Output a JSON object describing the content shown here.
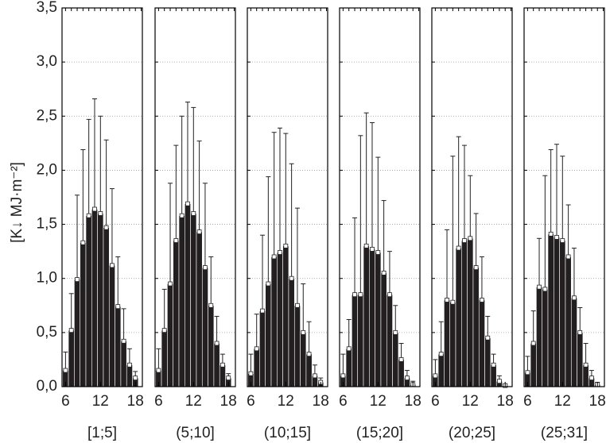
{
  "chart_data": [
    {
      "type": "bar",
      "y_label": "[K↓ MJ·m⁻²]",
      "x_label": "[1;5]",
      "x": [
        6,
        7,
        8,
        9,
        10,
        11,
        12,
        13,
        14,
        15,
        16,
        17,
        18
      ],
      "values": [
        0.15,
        0.52,
        0.99,
        1.33,
        1.58,
        1.64,
        1.6,
        1.47,
        1.12,
        0.74,
        0.42,
        0.2,
        0.08
      ],
      "errors": [
        0.17,
        0.34,
        0.78,
        0.86,
        0.89,
        1.02,
        0.9,
        0.81,
        0.71,
        0.46,
        0.3,
        0.15,
        0.06
      ],
      "color": "#231f20",
      "xlim": [
        5.4,
        19.2
      ],
      "xticks": [
        6,
        12,
        18
      ],
      "ylim": [
        0,
        3.5
      ],
      "yticks": [
        {
          "value": 0,
          "label": "0,0"
        },
        {
          "value": 0.5,
          "label": "0,5"
        },
        {
          "value": 1,
          "label": "1,0"
        },
        {
          "value": 1.5,
          "label": "1,5"
        },
        {
          "value": 2,
          "label": "2,0"
        },
        {
          "value": 2.5,
          "label": "2,5"
        },
        {
          "value": 3,
          "label": "3,0"
        },
        {
          "value": 3.5,
          "label": "3,5"
        }
      ],
      "grid": true
    },
    {
      "type": "bar",
      "x_label": "(5;10]",
      "x": [
        6,
        7,
        8,
        9,
        10,
        11,
        12,
        13,
        14,
        15,
        16,
        17,
        18
      ],
      "values": [
        0.15,
        0.52,
        0.95,
        1.35,
        1.58,
        1.69,
        1.6,
        1.43,
        1.1,
        0.75,
        0.4,
        0.2,
        0.08
      ],
      "errors": [
        0.2,
        0.38,
        0.93,
        0.88,
        0.92,
        0.94,
        0.98,
        0.84,
        0.78,
        0.45,
        0.25,
        0.1,
        0.04
      ],
      "color": "#231f20",
      "xlim": [
        5.4,
        19.2
      ],
      "xticks": [
        6,
        12,
        18
      ],
      "ylim": [
        0,
        3.5
      ],
      "yticks": [
        0,
        0.5,
        1,
        1.5,
        2,
        2.5,
        3,
        3.5
      ],
      "grid": true
    },
    {
      "type": "bar",
      "x_label": "(10;15]",
      "x": [
        6,
        7,
        8,
        9,
        10,
        11,
        12,
        13,
        14,
        15,
        16,
        17,
        18
      ],
      "values": [
        0.12,
        0.35,
        0.7,
        0.95,
        1.2,
        1.24,
        1.3,
        1.0,
        0.75,
        0.5,
        0.3,
        0.1,
        0.04
      ],
      "errors": [
        0.18,
        0.32,
        0.7,
        0.99,
        1.15,
        1.15,
        1.04,
        1.06,
        0.9,
        0.45,
        0.3,
        0.1,
        0.04
      ],
      "color": "#231f20",
      "xlim": [
        5.4,
        19.2
      ],
      "xticks": [
        6,
        12,
        18
      ],
      "ylim": [
        0,
        3.5
      ],
      "yticks": [
        0,
        0.5,
        1,
        1.5,
        2,
        2.5,
        3,
        3.5
      ],
      "grid": true
    },
    {
      "type": "bar",
      "x_label": "(15;20]",
      "x": [
        6,
        7,
        8,
        9,
        10,
        11,
        12,
        13,
        14,
        15,
        16,
        17,
        18
      ],
      "values": [
        0.1,
        0.35,
        0.85,
        0.85,
        1.3,
        1.27,
        1.24,
        1.05,
        0.85,
        0.5,
        0.25,
        0.08,
        0.02
      ],
      "errors": [
        0.2,
        0.27,
        0.71,
        1.47,
        1.23,
        1.17,
        0.88,
        0.67,
        0.4,
        0.25,
        0.15,
        0.07,
        0.03
      ],
      "color": "#231f20",
      "xlim": [
        5.4,
        19.2
      ],
      "xticks": [
        6,
        12,
        18
      ],
      "ylim": [
        0,
        3.5
      ],
      "yticks": [
        0,
        0.5,
        1,
        1.5,
        2,
        2.5,
        3,
        3.5
      ],
      "grid": true
    },
    {
      "type": "bar",
      "x_label": "(20;25]",
      "x": [
        6,
        7,
        8,
        9,
        10,
        11,
        12,
        13,
        14,
        15,
        16,
        17,
        18
      ],
      "values": [
        0.1,
        0.3,
        0.8,
        0.78,
        1.28,
        1.35,
        1.37,
        1.1,
        0.8,
        0.45,
        0.2,
        0.05,
        0.01
      ],
      "errors": [
        0.15,
        0.3,
        0.65,
        1.35,
        1.03,
        0.88,
        0.58,
        0.5,
        0.4,
        0.2,
        0.1,
        0.05,
        0.01
      ],
      "color": "#231f20",
      "xlim": [
        5.4,
        19.2
      ],
      "xticks": [
        6,
        12,
        18
      ],
      "ylim": [
        0,
        3.5
      ],
      "yticks": [
        0,
        0.5,
        1,
        1.5,
        2,
        2.5,
        3,
        3.5
      ],
      "grid": true
    },
    {
      "type": "bar",
      "x_label": "(25;31]",
      "x": [
        6,
        7,
        8,
        9,
        10,
        11,
        12,
        13,
        14,
        15,
        16,
        17,
        18
      ],
      "values": [
        0.13,
        0.4,
        0.92,
        0.9,
        1.41,
        1.38,
        1.35,
        1.2,
        0.82,
        0.5,
        0.2,
        0.08,
        0.02
      ],
      "errors": [
        0.15,
        0.3,
        0.45,
        1.05,
        0.78,
        0.86,
        0.78,
        0.48,
        0.46,
        0.23,
        0.2,
        0.07,
        0.02
      ],
      "color": "#231f20",
      "xlim": [
        5.4,
        19.2
      ],
      "xticks": [
        6,
        12,
        18
      ],
      "ylim": [
        0,
        3.5
      ],
      "yticks": [
        0,
        0.5,
        1,
        1.5,
        2,
        2.5,
        3,
        3.5
      ],
      "grid": true
    }
  ]
}
